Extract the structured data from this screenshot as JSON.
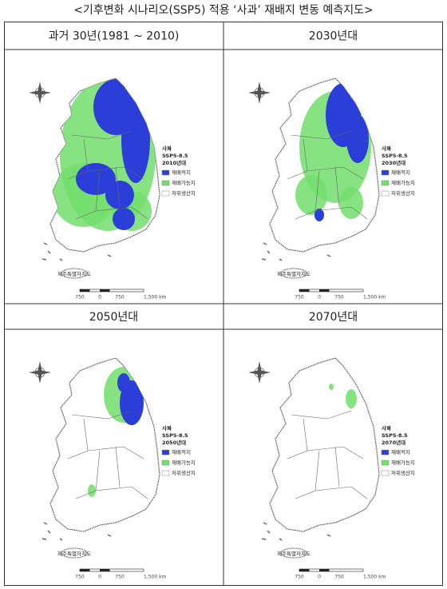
{
  "title": "<기후변화 시나리오(SSP5) 적용 ‘사과’ 재배지 변동 예측지도>",
  "legend_items": [
    {
      "label": "재배적지",
      "color": "#2b3fd8"
    },
    {
      "label": "재배가능지",
      "color": "#72de6c"
    },
    {
      "label": "저위생산지",
      "color": "#ffffff"
    }
  ],
  "scale_labels": [
    "750",
    "0",
    "750",
    "1,500 km"
  ],
  "island_label": "제주특별자치도",
  "panels": [
    {
      "title": "과거 30년(1981 ~ 2010)",
      "crop": "사과",
      "scenario": "SSP5-8.5",
      "period": "2010년대"
    },
    {
      "title": "2030년대",
      "crop": "사과",
      "scenario": "SSP5-8.5",
      "period": "2030년대"
    },
    {
      "title": "2050년대",
      "crop": "사과",
      "scenario": "SSP5-8.5",
      "period": "2050년대"
    },
    {
      "title": "2070년대",
      "crop": "사과",
      "scenario": "SSP5-8.5",
      "period": "2070년대"
    }
  ]
}
